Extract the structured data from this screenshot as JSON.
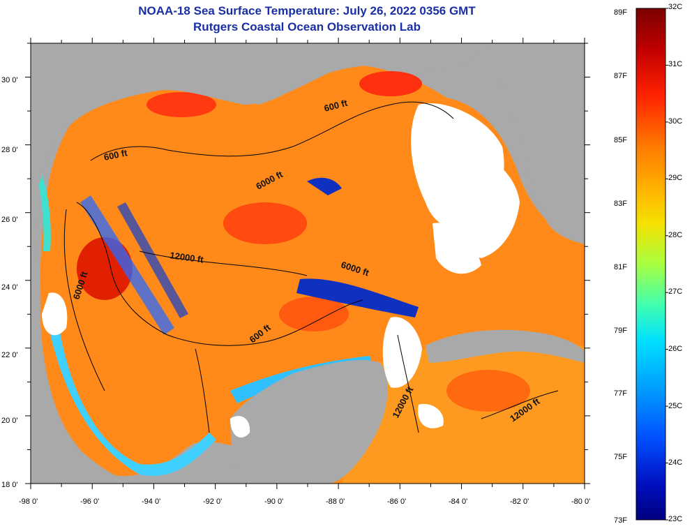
{
  "header": {
    "title": "NOAA-18 Sea Surface Temperature:  July 26, 2022 0356 GMT",
    "subtitle": "Rutgers Coastal Ocean Observation Lab"
  },
  "map": {
    "lon_ticks": [
      "-98 0'",
      "-96 0'",
      "-94 0'",
      "-92 0'",
      "-90 0'",
      "-88 0'",
      "-86 0'",
      "-84 0'",
      "-82 0'",
      "-80 0'"
    ],
    "lat_ticks": [
      "30 0'",
      "28 0'",
      "26 0'",
      "24 0'",
      "22 0'",
      "20 0'",
      "18 0'"
    ],
    "contour_labels": [
      "600 ft",
      "600 ft",
      "6000 ft",
      "12000 ft",
      "6000 ft",
      "6000 ft",
      "600 ft",
      "12000 ft",
      "12000 ft"
    ],
    "colors": {
      "land": "#a9a9a9",
      "cloud": "#ffffff",
      "frame": "#000000"
    }
  },
  "colorbar": {
    "fahrenheit_labels": [
      "89F",
      "87F",
      "85F",
      "83F",
      "81F",
      "79F",
      "77F",
      "75F",
      "73F"
    ],
    "celsius_labels": [
      "32C",
      "31C",
      "30C",
      "29C",
      "28C",
      "27C",
      "26C",
      "25C",
      "24C",
      "23C"
    ],
    "gradient": [
      "#7a0000",
      "#c00000",
      "#ff2200",
      "#ff7a00",
      "#ffb000",
      "#f5e000",
      "#a8ff40",
      "#40ffb0",
      "#00e0ff",
      "#00a0ff",
      "#0050ff",
      "#0010c0",
      "#000080"
    ]
  }
}
